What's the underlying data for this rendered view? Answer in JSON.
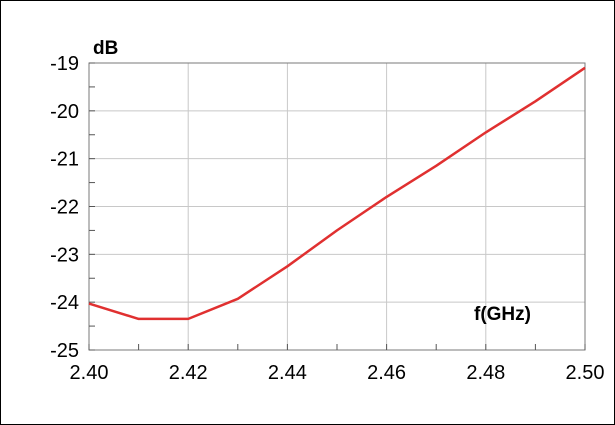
{
  "chart_data": {
    "type": "line",
    "title": "",
    "xlabel": "f(GHz)",
    "ylabel": "dB",
    "xlim": [
      2.4,
      2.5
    ],
    "ylim": [
      -25,
      -19
    ],
    "x_ticks": [
      "2.40",
      "2.42",
      "2.44",
      "2.46",
      "2.48",
      "2.50"
    ],
    "x_tick_values": [
      2.4,
      2.42,
      2.44,
      2.46,
      2.48,
      2.5
    ],
    "y_ticks": [
      "-19",
      "-20",
      "-21",
      "-22",
      "-23",
      "-24",
      "-25"
    ],
    "y_tick_values": [
      -19,
      -20,
      -21,
      -22,
      -23,
      -24,
      -25
    ],
    "x_minor_step": 0.01,
    "y_minor_step": 0.5,
    "grid": true,
    "series": [
      {
        "color": "#e03030",
        "x": [
          2.4,
          2.41,
          2.42,
          2.43,
          2.44,
          2.45,
          2.46,
          2.47,
          2.48,
          2.49,
          2.5
        ],
        "y": [
          -24.03,
          -24.35,
          -24.35,
          -23.93,
          -23.25,
          -22.5,
          -21.8,
          -21.15,
          -20.45,
          -19.8,
          -19.1
        ]
      }
    ]
  }
}
